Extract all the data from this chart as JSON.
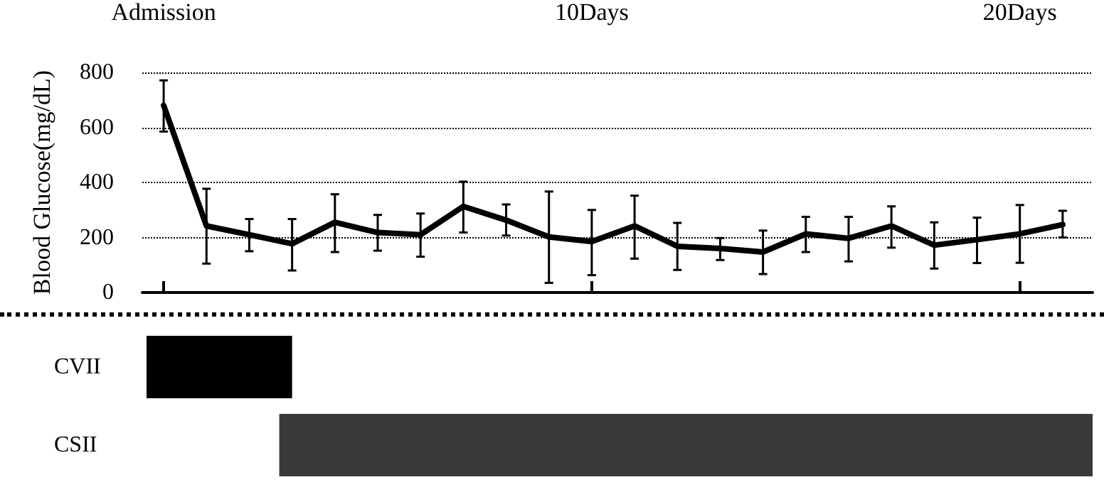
{
  "chart_data": [
    {
      "type": "line",
      "ylabel": "Blood Glucose(mg/dL)",
      "x": [
        0,
        1,
        2,
        3,
        4,
        5,
        6,
        7,
        8,
        9,
        10,
        11,
        12,
        13,
        14,
        15,
        16,
        17,
        18,
        19,
        20,
        21
      ],
      "series": [
        {
          "color": "#000000",
          "values": [
            680,
            242,
            210,
            177,
            255,
            218,
            210,
            313,
            263,
            202,
            185,
            242,
            168,
            160,
            147,
            213,
            197,
            242,
            172,
            192,
            213,
            247
          ],
          "errors": [
            [
              585,
              771
            ],
            [
              105,
              377
            ],
            [
              150,
              267
            ],
            [
              80,
              267
            ],
            [
              147,
              357
            ],
            [
              152,
              282
            ],
            [
              130,
              287
            ],
            [
              218,
              403
            ],
            [
              207,
              320
            ],
            [
              35,
              367
            ],
            [
              63,
              300
            ],
            [
              123,
              352
            ],
            [
              82,
              253
            ],
            [
              118,
              198
            ],
            [
              67,
              225
            ],
            [
              147,
              275
            ],
            [
              113,
              275
            ],
            [
              163,
              313
            ],
            [
              87,
              255
            ],
            [
              107,
              272
            ],
            [
              108,
              318
            ],
            [
              200,
              297
            ]
          ]
        }
      ],
      "xlim": [
        -0.5,
        21.7
      ],
      "xticks": [
        {
          "value": 0,
          "label": "Admission"
        },
        {
          "value": 10,
          "label": "10Days"
        },
        {
          "value": 20,
          "label": "20Days"
        }
      ],
      "ylim": [
        0,
        800
      ],
      "yticks": [
        0,
        200,
        400,
        600,
        800
      ],
      "grid": "y",
      "marker": "none",
      "line_style": "solid"
    },
    {
      "type": "bar",
      "orientation": "horizontal",
      "categories": [
        "CVII",
        "CSII"
      ],
      "base": [
        -0.4,
        2.7
      ],
      "values": [
        3.4,
        19.0
      ],
      "colors": [
        "#000000",
        "#3a3a3a"
      ],
      "xlim": [
        -0.5,
        21.7
      ],
      "tick_labels": "y"
    }
  ]
}
